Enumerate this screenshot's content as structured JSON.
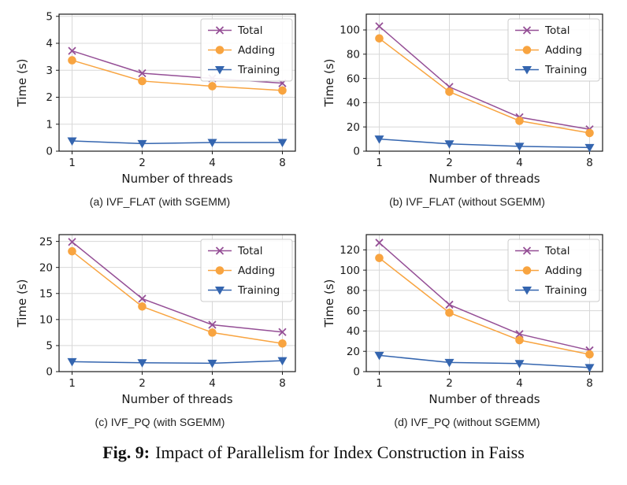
{
  "figure": {
    "caption_label": "Fig. 9:",
    "caption_text": "Impact of Parallelism for Index Construction in Faiss"
  },
  "style": {
    "colors": {
      "total": "#954f96",
      "adding": "#f8a440",
      "training": "#3465af",
      "grid": "#d8d8d8",
      "spine": "#1a1a1a",
      "text": "#1a1a1a",
      "legend_border": "#cccccc",
      "background": "#ffffff"
    }
  },
  "chart_data": [
    {
      "type": "line",
      "caption": "(a) IVF_FLAT (with SGEMM)",
      "title": "",
      "xlabel": "Number of threads",
      "ylabel": "Time (s)",
      "x": [
        1,
        2,
        4,
        8
      ],
      "yticks": [
        0,
        1,
        2,
        3,
        4,
        5
      ],
      "ylim": [
        0,
        5.08
      ],
      "grid": true,
      "legend_position": "upper right",
      "series": [
        {
          "name": "Total",
          "marker": "x",
          "color": "#954f96",
          "values": [
            3.72,
            2.89,
            2.7,
            2.52
          ]
        },
        {
          "name": "Adding",
          "marker": "circle",
          "color": "#f8a440",
          "values": [
            3.37,
            2.6,
            2.41,
            2.25
          ]
        },
        {
          "name": "Training",
          "marker": "triangle-down",
          "color": "#3465af",
          "values": [
            0.38,
            0.28,
            0.32,
            0.32
          ]
        }
      ]
    },
    {
      "type": "line",
      "caption": "(b) IVF_FLAT (without SGEMM)",
      "title": "",
      "xlabel": "Number of threads",
      "ylabel": "Time (s)",
      "x": [
        1,
        2,
        4,
        8
      ],
      "yticks": [
        0,
        20,
        40,
        60,
        80,
        100
      ],
      "ylim": [
        0,
        113
      ],
      "grid": true,
      "legend_position": "upper right",
      "series": [
        {
          "name": "Total",
          "marker": "x",
          "color": "#954f96",
          "values": [
            103,
            53,
            28,
            18
          ]
        },
        {
          "name": "Adding",
          "marker": "circle",
          "color": "#f8a440",
          "values": [
            93,
            49,
            25,
            15
          ]
        },
        {
          "name": "Training",
          "marker": "triangle-down",
          "color": "#3465af",
          "values": [
            10,
            6,
            4,
            3
          ]
        }
      ]
    },
    {
      "type": "line",
      "caption": "(c) IVF_PQ (with SGEMM)",
      "title": "",
      "xlabel": "Number of threads",
      "ylabel": "Time (s)",
      "x": [
        1,
        2,
        4,
        8
      ],
      "yticks": [
        0,
        5,
        10,
        15,
        20,
        25
      ],
      "ylim": [
        0,
        26.3
      ],
      "grid": true,
      "legend_position": "upper right",
      "series": [
        {
          "name": "Total",
          "marker": "x",
          "color": "#954f96",
          "values": [
            24.9,
            14.0,
            9.0,
            7.6
          ]
        },
        {
          "name": "Adding",
          "marker": "circle",
          "color": "#f8a440",
          "values": [
            23.1,
            12.5,
            7.5,
            5.4
          ]
        },
        {
          "name": "Training",
          "marker": "triangle-down",
          "color": "#3465af",
          "values": [
            1.9,
            1.7,
            1.6,
            2.1
          ]
        }
      ]
    },
    {
      "type": "line",
      "caption": "(d) IVF_PQ (without SGEMM)",
      "title": "",
      "xlabel": "Number of threads",
      "ylabel": "Time (s)",
      "x": [
        1,
        2,
        4,
        8
      ],
      "yticks": [
        0,
        20,
        40,
        60,
        80,
        100,
        120
      ],
      "ylim": [
        0,
        135
      ],
      "grid": true,
      "legend_position": "upper right",
      "series": [
        {
          "name": "Total",
          "marker": "x",
          "color": "#954f96",
          "values": [
            127,
            66,
            37,
            21
          ]
        },
        {
          "name": "Adding",
          "marker": "circle",
          "color": "#f8a440",
          "values": [
            112,
            58,
            31,
            17
          ]
        },
        {
          "name": "Training",
          "marker": "triangle-down",
          "color": "#3465af",
          "values": [
            16,
            9,
            8,
            4
          ]
        }
      ]
    }
  ]
}
